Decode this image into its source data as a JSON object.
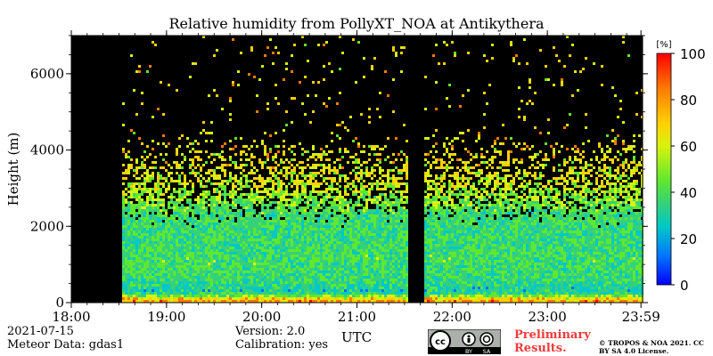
{
  "header": {
    "title": "Relative humidity from PollyXT_NOA at Antikythera"
  },
  "footer": {
    "date": "2021-07-15",
    "meteor": "Meteor Data: gdas1",
    "version": "Version: 2.0",
    "calibration": "Calibration: yes",
    "preliminary": "Preliminary Results.",
    "copyright": "© TROPOS & NOA 2021. CC BY SA 4.0 License.",
    "license_badge": {
      "icon": "cc-by-sa-icon",
      "cc": "cc",
      "by": "BY",
      "sa": "SA"
    }
  },
  "colors": {
    "background": "#000000",
    "colormap": [
      "#0000ff",
      "#0072ff",
      "#00c8c8",
      "#35d17a",
      "#5fe82f",
      "#d8f20e",
      "#ffd000",
      "#ff7a00",
      "#ff0000"
    ]
  },
  "chart_data": {
    "type": "heatmap",
    "title": "Relative humidity from PollyXT_NOA at Antikythera",
    "xlabel": "UTC",
    "ylabel": "Height (m)",
    "xlim": [
      "18:00",
      "23:59"
    ],
    "ylim": [
      0,
      7000
    ],
    "xticks": [
      "18:00",
      "19:00",
      "20:00",
      "21:00",
      "22:00",
      "23:00",
      "23:59"
    ],
    "xtick_hours": [
      18,
      19,
      20,
      21,
      22,
      23,
      23.983
    ],
    "yticks": [
      0,
      2000,
      4000,
      6000
    ],
    "colorbar": {
      "unit": "[%]",
      "range": [
        0,
        100
      ],
      "ticks": [
        0,
        20,
        40,
        60,
        80,
        100
      ]
    },
    "no_data_intervals_utc": [
      [
        "18:00",
        "18:31"
      ],
      [
        "21:32",
        "21:42"
      ]
    ],
    "rh_profile": [
      {
        "height": 100,
        "rh_percent": 80
      },
      {
        "height": 300,
        "rh_percent": 30
      },
      {
        "height": 700,
        "rh_percent": 40
      },
      {
        "height": 1200,
        "rh_percent": 42
      },
      {
        "height": 1800,
        "rh_percent": 38
      },
      {
        "height": 2400,
        "rh_percent": 42
      },
      {
        "height": 3200,
        "rh_percent": 65
      },
      {
        "height": 4200,
        "rh_percent": 70
      }
    ]
  }
}
